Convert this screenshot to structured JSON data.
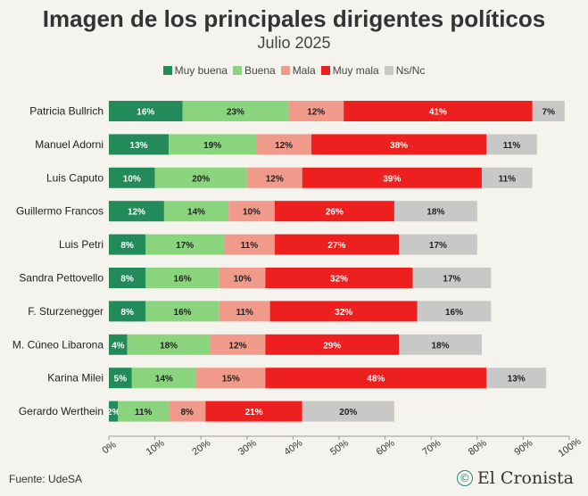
{
  "chart_data": {
    "type": "bar",
    "stacked": true,
    "orientation": "horizontal",
    "title": "Imagen de los principales dirigentes políticos",
    "subtitle": "Julio 2025",
    "categories": [
      "Patricia Bullrich",
      "Manuel Adorni",
      "Luis Caputo",
      "Guillermo Francos",
      "Luis Petri",
      "Sandra Pettovello",
      "F. Sturzenegger",
      "M. Cúneo Libarona",
      "Karina Milei",
      "Gerardo Werthein"
    ],
    "series": [
      {
        "name": "Muy buena",
        "color": "#238b5a",
        "values": [
          16,
          13,
          10,
          12,
          8,
          8,
          8,
          4,
          5,
          2
        ]
      },
      {
        "name": "Buena",
        "color": "#8bd47e",
        "values": [
          23,
          19,
          20,
          14,
          17,
          16,
          16,
          18,
          14,
          11
        ]
      },
      {
        "name": "Mala",
        "color": "#ef9a8a",
        "values": [
          12,
          12,
          12,
          10,
          11,
          10,
          11,
          12,
          15,
          8
        ]
      },
      {
        "name": "Muy mala",
        "color": "#ee1f1f",
        "values": [
          41,
          38,
          39,
          26,
          27,
          32,
          32,
          29,
          48,
          21
        ]
      },
      {
        "name": "Ns/Nc",
        "color": "#c8c8c8",
        "values": [
          7,
          11,
          11,
          18,
          17,
          17,
          16,
          18,
          13,
          20
        ]
      }
    ],
    "xlim": [
      0,
      100
    ],
    "x_ticks": [
      "0%",
      "10%",
      "20%",
      "30%",
      "40%",
      "50%",
      "60%",
      "70%",
      "80%",
      "90%",
      "100%"
    ],
    "legend_position": "top"
  },
  "footer": {
    "source": "Fuente: UdeSA",
    "brand": "El Cronista",
    "brand_icon": "©"
  }
}
